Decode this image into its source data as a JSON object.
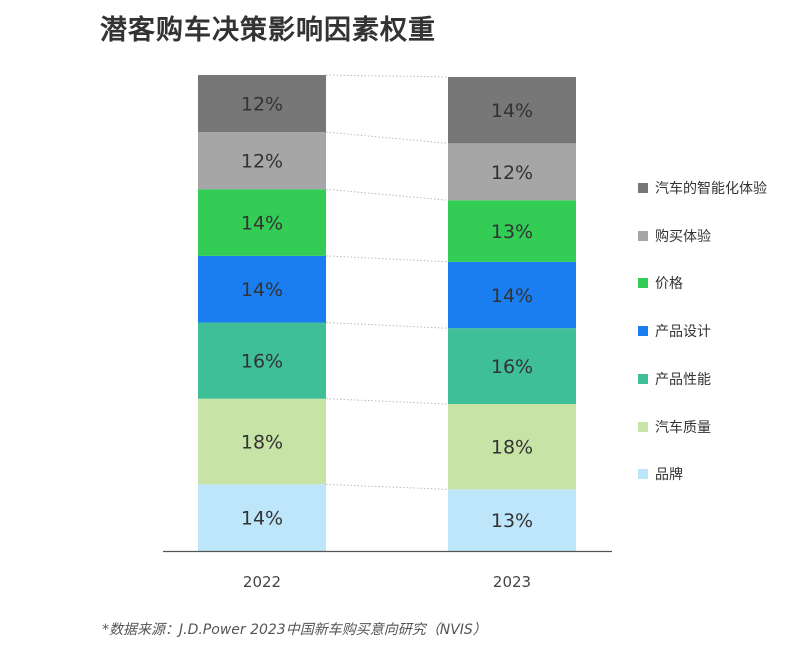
{
  "title": "潜客购车决策影响因素权重",
  "source": "*数据来源：J.D.Power 2023中国新车购买意向研究（NVIS）",
  "chart_data": {
    "type": "bar",
    "stacked": true,
    "percent_stacked": true,
    "categories": [
      "2022",
      "2023"
    ],
    "series": [
      {
        "name": "品牌",
        "values": [
          14,
          13
        ],
        "labels": [
          "14%",
          "13%"
        ],
        "color": "#bde6fa"
      },
      {
        "name": "汽车质量",
        "values": [
          18,
          18
        ],
        "labels": [
          "18%",
          "18%"
        ],
        "color": "#c7e3a6"
      },
      {
        "name": "产品性能",
        "values": [
          16,
          16
        ],
        "labels": [
          "16%",
          "16%"
        ],
        "color": "#3ebf98"
      },
      {
        "name": "产品设计",
        "values": [
          14,
          14
        ],
        "labels": [
          "14%",
          "14%"
        ],
        "color": "#1a7ef0"
      },
      {
        "name": "价格",
        "values": [
          14,
          13
        ],
        "labels": [
          "14%",
          "13%"
        ],
        "color": "#33cc55"
      },
      {
        "name": "购买体验",
        "values": [
          12,
          12
        ],
        "labels": [
          "12%",
          "12%"
        ],
        "color": "#a6a6a6"
      },
      {
        "name": "汽车的智能化体验",
        "values": [
          12,
          14
        ],
        "labels": [
          "12%",
          "14%"
        ],
        "color": "#777777"
      }
    ],
    "legend": {
      "placement": "right",
      "order": [
        "汽车的智能化体验",
        "购买体验",
        "价格",
        "产品设计",
        "产品性能",
        "汽车质量",
        "品牌"
      ]
    },
    "grid": false
  }
}
